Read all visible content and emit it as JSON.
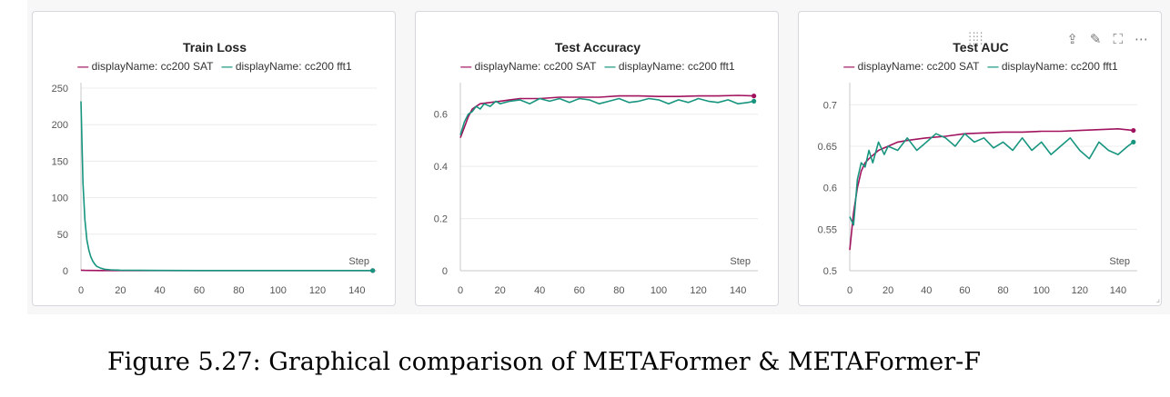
{
  "caption": "Figure 5.27: Graphical comparison of METAFormer & METAFormer-F",
  "colors": {
    "series_1": "#a1135f",
    "series_2": "#17957f",
    "grid": "#ececec",
    "axis": "#c8c8c8",
    "tick_text": "#555555"
  },
  "toolbar_icons": [
    "drag-grip-icon",
    "share-icon",
    "edit-icon",
    "fullscreen-icon",
    "more-icon"
  ],
  "chart_data": [
    {
      "type": "line",
      "title": "Train Loss",
      "xlabel": "Step",
      "x_ticks": [
        "0",
        "20",
        "40",
        "60",
        "80",
        "100",
        "120",
        "140"
      ],
      "y_ticks": [
        "0",
        "50",
        "100",
        "150",
        "200",
        "250"
      ],
      "xlim": [
        0,
        150
      ],
      "ylim": [
        0,
        250
      ],
      "legend": "top",
      "grid": true,
      "series": [
        {
          "name": "displayName: cc200 SAT",
          "color": "#a1135f",
          "x": [
            0,
            1,
            2,
            5,
            10,
            20,
            40,
            80,
            120,
            148
          ],
          "y": [
            0.7,
            0.6,
            0.5,
            0.4,
            0.3,
            0.25,
            0.2,
            0.2,
            0.2,
            0.2
          ]
        },
        {
          "name": "displayName: cc200 fft1",
          "color": "#17957f",
          "x": [
            0,
            1,
            2,
            3,
            4,
            5,
            6,
            7,
            8,
            10,
            12,
            15,
            20,
            30,
            40,
            60,
            80,
            100,
            120,
            148
          ],
          "y": [
            232,
            120,
            70,
            42,
            28,
            19,
            13,
            9,
            6,
            3.5,
            2,
            1.2,
            0.8,
            0.5,
            0.4,
            0.3,
            0.3,
            0.25,
            0.2,
            0.2
          ]
        }
      ]
    },
    {
      "type": "line",
      "title": "Test Accuracy",
      "xlabel": "Step",
      "x_ticks": [
        "0",
        "20",
        "40",
        "60",
        "80",
        "100",
        "120",
        "140"
      ],
      "y_ticks": [
        "0",
        "0.2",
        "0.4",
        "0.6"
      ],
      "xlim": [
        0,
        150
      ],
      "ylim": [
        0,
        0.7
      ],
      "legend": "top",
      "grid": true,
      "series": [
        {
          "name": "displayName: cc200 SAT",
          "color": "#a1135f",
          "x": [
            0,
            2,
            4,
            6,
            8,
            10,
            15,
            20,
            25,
            30,
            40,
            50,
            60,
            70,
            80,
            90,
            100,
            110,
            120,
            130,
            140,
            148
          ],
          "y": [
            0.51,
            0.55,
            0.59,
            0.62,
            0.63,
            0.64,
            0.645,
            0.65,
            0.655,
            0.66,
            0.66,
            0.665,
            0.665,
            0.665,
            0.67,
            0.67,
            0.668,
            0.668,
            0.67,
            0.67,
            0.672,
            0.67
          ]
        },
        {
          "name": "displayName: cc200 fft1",
          "color": "#17957f",
          "x": [
            0,
            2,
            4,
            6,
            8,
            10,
            12,
            15,
            18,
            20,
            25,
            30,
            35,
            40,
            45,
            50,
            55,
            60,
            65,
            70,
            75,
            80,
            85,
            90,
            95,
            100,
            105,
            110,
            115,
            120,
            125,
            130,
            135,
            140,
            145,
            148
          ],
          "y": [
            0.52,
            0.57,
            0.6,
            0.61,
            0.63,
            0.62,
            0.64,
            0.63,
            0.65,
            0.64,
            0.65,
            0.655,
            0.64,
            0.66,
            0.65,
            0.66,
            0.645,
            0.66,
            0.655,
            0.64,
            0.65,
            0.66,
            0.645,
            0.65,
            0.66,
            0.655,
            0.64,
            0.655,
            0.645,
            0.66,
            0.65,
            0.645,
            0.655,
            0.64,
            0.645,
            0.65
          ]
        }
      ]
    },
    {
      "type": "line",
      "title": "Test AUC",
      "xlabel": "Step",
      "x_ticks": [
        "0",
        "20",
        "40",
        "60",
        "80",
        "100",
        "120",
        "140"
      ],
      "y_ticks": [
        "0.5",
        "0.55",
        "0.6",
        "0.65",
        "0.7"
      ],
      "xlim": [
        0,
        150
      ],
      "ylim": [
        0.5,
        0.72
      ],
      "legend": "top",
      "grid": true,
      "series": [
        {
          "name": "displayName: cc200 SAT",
          "color": "#a1135f",
          "x": [
            0,
            2,
            4,
            6,
            8,
            10,
            15,
            20,
            25,
            30,
            40,
            50,
            60,
            70,
            80,
            90,
            100,
            110,
            120,
            130,
            140,
            148
          ],
          "y": [
            0.525,
            0.57,
            0.6,
            0.62,
            0.63,
            0.635,
            0.645,
            0.65,
            0.655,
            0.657,
            0.66,
            0.662,
            0.665,
            0.666,
            0.667,
            0.667,
            0.668,
            0.668,
            0.669,
            0.67,
            0.671,
            0.669
          ]
        },
        {
          "name": "displayName: cc200 fft1",
          "color": "#17957f",
          "x": [
            0,
            2,
            4,
            6,
            8,
            10,
            12,
            15,
            18,
            20,
            25,
            30,
            35,
            40,
            45,
            50,
            55,
            60,
            65,
            70,
            75,
            80,
            85,
            90,
            95,
            100,
            105,
            110,
            115,
            120,
            125,
            130,
            135,
            140,
            145,
            148
          ],
          "y": [
            0.565,
            0.555,
            0.61,
            0.63,
            0.625,
            0.645,
            0.63,
            0.655,
            0.64,
            0.65,
            0.645,
            0.66,
            0.645,
            0.655,
            0.665,
            0.66,
            0.65,
            0.665,
            0.655,
            0.66,
            0.648,
            0.655,
            0.645,
            0.66,
            0.645,
            0.655,
            0.64,
            0.65,
            0.66,
            0.645,
            0.635,
            0.655,
            0.645,
            0.64,
            0.65,
            0.655
          ]
        }
      ]
    }
  ]
}
